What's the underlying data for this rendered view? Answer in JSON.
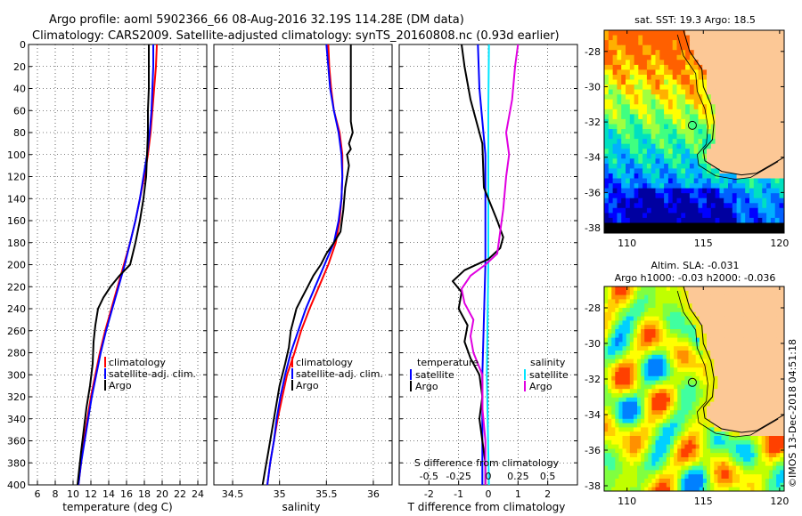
{
  "header": {
    "line1": "Argo profile: aoml 5902366_66 08-Aug-2016 32.19S 114.28E (DM data)",
    "line2": "Climatology: CARS2009. Satellite-adjusted climatology: synTS_20160808.nc (0.93d earlier)"
  },
  "colors": {
    "climatology": "#ff0000",
    "satellite": "#0000ff",
    "argo": "#000000",
    "s_satellite": "#00e5ff",
    "s_argo": "#e000e0"
  },
  "chart_data": [
    {
      "id": "temperature",
      "type": "line",
      "xlabel": "temperature (deg C)",
      "ylabel": "",
      "xlim": [
        5,
        25
      ],
      "ylim": [
        400,
        0
      ],
      "xticks": [
        6,
        8,
        10,
        12,
        14,
        16,
        18,
        20,
        22,
        24
      ],
      "xtick_labels": [
        "6",
        "8",
        "10",
        "12",
        "14",
        "16",
        "18",
        "20",
        "22",
        "24"
      ],
      "yticks": [
        0,
        20,
        40,
        60,
        80,
        100,
        120,
        140,
        160,
        180,
        200,
        220,
        240,
        260,
        280,
        300,
        320,
        340,
        360,
        380,
        400
      ],
      "ytick_labels": [
        "0",
        "20",
        "40",
        "60",
        "80",
        "100",
        "120",
        "140",
        "160",
        "180",
        "200",
        "220",
        "240",
        "260",
        "280",
        "300",
        "320",
        "340",
        "360",
        "380",
        "400"
      ],
      "legend": [
        "climatology",
        "satellite-adj. clim.",
        "Argo"
      ],
      "series": [
        {
          "name": "climatology",
          "color": "#ff0000",
          "points": [
            [
              19.4,
              0
            ],
            [
              19.3,
              20
            ],
            [
              19.1,
              40
            ],
            [
              18.9,
              60
            ],
            [
              18.7,
              80
            ],
            [
              18.4,
              100
            ],
            [
              18.0,
              120
            ],
            [
              17.5,
              140
            ],
            [
              17.0,
              160
            ],
            [
              16.4,
              180
            ],
            [
              15.7,
              200
            ],
            [
              15.0,
              220
            ],
            [
              14.3,
              240
            ],
            [
              13.6,
              260
            ],
            [
              13.0,
              280
            ],
            [
              12.5,
              300
            ],
            [
              12.0,
              320
            ],
            [
              11.6,
              340
            ],
            [
              11.2,
              360
            ],
            [
              10.9,
              380
            ],
            [
              10.6,
              400
            ]
          ]
        },
        {
          "name": "satellite-adj. clim.",
          "color": "#0000ff",
          "points": [
            [
              19.0,
              0
            ],
            [
              19.0,
              20
            ],
            [
              18.9,
              40
            ],
            [
              18.8,
              60
            ],
            [
              18.6,
              80
            ],
            [
              18.3,
              100
            ],
            [
              17.9,
              120
            ],
            [
              17.5,
              140
            ],
            [
              17.0,
              160
            ],
            [
              16.4,
              180
            ],
            [
              15.8,
              200
            ],
            [
              15.1,
              220
            ],
            [
              14.4,
              240
            ],
            [
              13.7,
              260
            ],
            [
              13.1,
              280
            ],
            [
              12.6,
              300
            ],
            [
              12.1,
              320
            ],
            [
              11.7,
              340
            ],
            [
              11.3,
              360
            ],
            [
              10.9,
              380
            ],
            [
              10.6,
              400
            ]
          ]
        },
        {
          "name": "Argo",
          "color": "#000000",
          "points": [
            [
              18.5,
              0
            ],
            [
              18.5,
              20
            ],
            [
              18.5,
              40
            ],
            [
              18.4,
              60
            ],
            [
              18.4,
              80
            ],
            [
              18.3,
              100
            ],
            [
              18.2,
              120
            ],
            [
              17.9,
              140
            ],
            [
              17.5,
              160
            ],
            [
              17.0,
              180
            ],
            [
              16.4,
              200
            ],
            [
              15.2,
              210
            ],
            [
              14.2,
              220
            ],
            [
              13.4,
              230
            ],
            [
              12.8,
              240
            ],
            [
              12.5,
              255
            ],
            [
              12.3,
              270
            ],
            [
              12.2,
              290
            ],
            [
              11.9,
              310
            ],
            [
              11.5,
              330
            ],
            [
              11.2,
              350
            ],
            [
              10.9,
              370
            ],
            [
              10.7,
              385
            ],
            [
              10.5,
              400
            ]
          ]
        }
      ]
    },
    {
      "id": "salinity",
      "type": "line",
      "xlabel": "salinity",
      "ylabel": "",
      "xlim": [
        34.3,
        36.2
      ],
      "ylim": [
        400,
        0
      ],
      "xticks": [
        34.5,
        35,
        35.5,
        36
      ],
      "xtick_labels": [
        "34.5",
        "35",
        "35.5",
        "36"
      ],
      "legend": [
        "climatology",
        "satellite-adj. clim.",
        "Argo"
      ],
      "series": [
        {
          "name": "climatology",
          "color": "#ff0000",
          "points": [
            [
              35.52,
              0
            ],
            [
              35.53,
              20
            ],
            [
              35.55,
              40
            ],
            [
              35.58,
              60
            ],
            [
              35.64,
              80
            ],
            [
              35.67,
              100
            ],
            [
              35.67,
              120
            ],
            [
              35.66,
              140
            ],
            [
              35.64,
              160
            ],
            [
              35.6,
              180
            ],
            [
              35.52,
              200
            ],
            [
              35.42,
              220
            ],
            [
              35.32,
              240
            ],
            [
              35.23,
              260
            ],
            [
              35.16,
              280
            ],
            [
              35.08,
              300
            ],
            [
              35.03,
              320
            ],
            [
              34.98,
              340
            ],
            [
              34.94,
              360
            ],
            [
              34.9,
              380
            ],
            [
              34.87,
              400
            ]
          ]
        },
        {
          "name": "satellite-adj. clim.",
          "color": "#0000ff",
          "points": [
            [
              35.5,
              0
            ],
            [
              35.52,
              20
            ],
            [
              35.54,
              40
            ],
            [
              35.58,
              60
            ],
            [
              35.63,
              80
            ],
            [
              35.66,
              100
            ],
            [
              35.67,
              120
            ],
            [
              35.66,
              140
            ],
            [
              35.63,
              160
            ],
            [
              35.58,
              180
            ],
            [
              35.48,
              200
            ],
            [
              35.38,
              220
            ],
            [
              35.28,
              240
            ],
            [
              35.2,
              260
            ],
            [
              35.12,
              280
            ],
            [
              35.06,
              300
            ],
            [
              35.01,
              320
            ],
            [
              34.97,
              340
            ],
            [
              34.94,
              360
            ],
            [
              34.9,
              380
            ],
            [
              34.87,
              400
            ]
          ]
        },
        {
          "name": "Argo",
          "color": "#000000",
          "points": [
            [
              35.76,
              0
            ],
            [
              35.76,
              40
            ],
            [
              35.76,
              60
            ],
            [
              35.76,
              70
            ],
            [
              35.78,
              80
            ],
            [
              35.74,
              90
            ],
            [
              35.76,
              95
            ],
            [
              35.72,
              100
            ],
            [
              35.74,
              110
            ],
            [
              35.7,
              130
            ],
            [
              35.68,
              150
            ],
            [
              35.65,
              170
            ],
            [
              35.58,
              180
            ],
            [
              35.5,
              190
            ],
            [
              35.44,
              200
            ],
            [
              35.36,
              210
            ],
            [
              35.3,
              220
            ],
            [
              35.24,
              230
            ],
            [
              35.18,
              240
            ],
            [
              35.15,
              250
            ],
            [
              35.12,
              260
            ],
            [
              35.1,
              275
            ],
            [
              35.06,
              290
            ],
            [
              35.0,
              310
            ],
            [
              34.96,
              330
            ],
            [
              34.92,
              350
            ],
            [
              34.88,
              370
            ],
            [
              34.84,
              390
            ],
            [
              34.82,
              400
            ]
          ]
        }
      ]
    },
    {
      "id": "difference",
      "type": "line",
      "xlabel": "T difference from climatology",
      "xlabel2": "S difference from climatology",
      "ylabel": "",
      "xlim": [
        -3,
        3
      ],
      "ylim": [
        400,
        0
      ],
      "xticks": [
        -2,
        -1,
        0,
        1,
        2
      ],
      "xtick_labels": [
        "-2",
        "-1",
        "0",
        "1",
        "2"
      ],
      "s_xtick_labels": [
        "-0.5",
        "-0.25",
        "0",
        "0.25",
        "0.5"
      ],
      "legend_title_t": "temperature",
      "legend_title_s": "salinity",
      "legend_t": [
        "satellite",
        "Argo"
      ],
      "legend_s": [
        "satellite",
        "Argo"
      ],
      "series": [
        {
          "name": "T satellite",
          "color": "#0000ff",
          "points": [
            [
              -0.35,
              0
            ],
            [
              -0.3,
              40
            ],
            [
              -0.1,
              100
            ],
            [
              -0.1,
              140
            ],
            [
              -0.1,
              200
            ],
            [
              -0.2,
              300
            ],
            [
              -0.2,
              400
            ]
          ]
        },
        {
          "name": "S satellite",
          "color": "#00e5ff",
          "points": [
            [
              0.02,
              0
            ],
            [
              0.0,
              60
            ],
            [
              0.0,
              200
            ],
            [
              -0.05,
              300
            ],
            [
              0.02,
              400
            ]
          ]
        },
        {
          "name": "T Argo",
          "color": "#000000",
          "points": [
            [
              -0.9,
              0
            ],
            [
              -0.8,
              20
            ],
            [
              -0.6,
              50
            ],
            [
              -0.2,
              90
            ],
            [
              -0.15,
              130
            ],
            [
              0.3,
              160
            ],
            [
              0.5,
              175
            ],
            [
              0.4,
              185
            ],
            [
              0.0,
              195
            ],
            [
              -0.8,
              205
            ],
            [
              -1.2,
              215
            ],
            [
              -0.9,
              225
            ],
            [
              -1.0,
              240
            ],
            [
              -0.7,
              255
            ],
            [
              -0.8,
              270
            ],
            [
              -0.6,
              285
            ],
            [
              -0.3,
              300
            ],
            [
              -0.2,
              320
            ],
            [
              -0.3,
              340
            ],
            [
              -0.2,
              360
            ],
            [
              -0.1,
              380
            ],
            [
              -0.1,
              400
            ]
          ]
        },
        {
          "name": "S Argo",
          "color": "#e000e0",
          "points": [
            [
              1.0,
              0
            ],
            [
              0.9,
              20
            ],
            [
              0.8,
              50
            ],
            [
              0.6,
              80
            ],
            [
              0.7,
              100
            ],
            [
              0.6,
              120
            ],
            [
              0.5,
              150
            ],
            [
              0.4,
              170
            ],
            [
              0.3,
              190
            ],
            [
              -0.1,
              200
            ],
            [
              -0.6,
              210
            ],
            [
              -0.9,
              222
            ],
            [
              -0.8,
              235
            ],
            [
              -0.5,
              250
            ],
            [
              -0.6,
              265
            ],
            [
              -0.5,
              280
            ],
            [
              -0.2,
              300
            ],
            [
              -0.2,
              330
            ],
            [
              -0.1,
              360
            ],
            [
              -0.1,
              400
            ]
          ]
        }
      ]
    },
    {
      "id": "sst-map",
      "type": "heatmap",
      "title": "sat. SST: 19.3 Argo: 18.5",
      "xticks": [
        110,
        115,
        120
      ],
      "xtick_labels": [
        "110",
        "115",
        "120"
      ],
      "yticks": [
        -28,
        -30,
        -32,
        -34,
        -36,
        -38
      ],
      "ytick_labels": [
        "-28",
        "-30",
        "-32",
        "-34",
        "-36",
        "-38"
      ],
      "xlim": [
        108.5,
        120.3
      ],
      "ylim": [
        -38.3,
        -26.8
      ],
      "marker": [
        114.28,
        -32.19
      ]
    },
    {
      "id": "sla-map",
      "type": "heatmap",
      "title": "Altim. SLA: -0.031",
      "subtitle": "Argo h1000: -0.03 h2000: -0.036",
      "xticks": [
        110,
        115,
        120
      ],
      "xtick_labels": [
        "110",
        "115",
        "120"
      ],
      "yticks": [
        -28,
        -30,
        -32,
        -34,
        -36,
        -38
      ],
      "ytick_labels": [
        "-28",
        "-30",
        "-32",
        "-34",
        "-36",
        "-38"
      ],
      "xlim": [
        108.5,
        120.3
      ],
      "ylim": [
        -38.3,
        -26.8
      ],
      "marker": [
        114.28,
        -32.19
      ]
    }
  ],
  "watermark": "©IMOS 13-Dec-2018 04:51:18"
}
